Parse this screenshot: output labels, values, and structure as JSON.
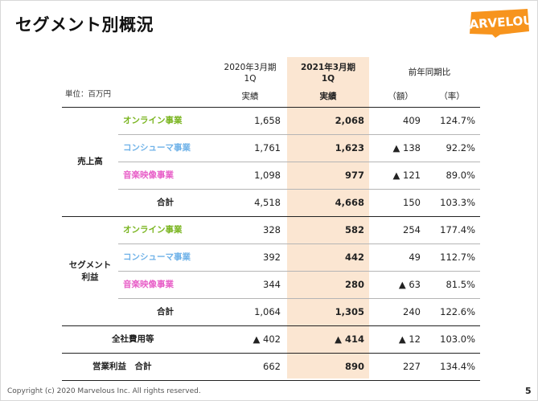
{
  "title": "セグメント別概況",
  "logo": {
    "text": "MARVELOUS",
    "color": "#f7941d"
  },
  "header": {
    "col_prev_line1": "2020年3月期",
    "col_prev_line2": "1Q",
    "col_curr_line1": "2021年3月期",
    "col_curr_line2": "1Q",
    "col_yoy": "前年同期比",
    "sub_prev": "実績",
    "sub_curr": "実績",
    "sub_amount": "（額）",
    "sub_rate": "（率）",
    "unit": "単位：百万円"
  },
  "groups": {
    "sales": "売上高",
    "profit_line1": "セグメント",
    "profit_line2": "利益"
  },
  "rows": [
    {
      "label": "オンライン事業",
      "prev": "1,658",
      "curr": "2,068",
      "amount": "409",
      "rate": "124.7%"
    },
    {
      "label": "コンシューマ事業",
      "prev": "1,761",
      "curr": "1,623",
      "amount": "▲ 138",
      "rate": "92.2%"
    },
    {
      "label": "音楽映像事業",
      "prev": "1,098",
      "curr": "977",
      "amount": "▲ 121",
      "rate": "89.0%"
    },
    {
      "label": "合計",
      "prev": "4,518",
      "curr": "4,668",
      "amount": "150",
      "rate": "103.3%"
    },
    {
      "label": "オンライン事業",
      "prev": "328",
      "curr": "582",
      "amount": "254",
      "rate": "177.4%"
    },
    {
      "label": "コンシューマ事業",
      "prev": "392",
      "curr": "442",
      "amount": "49",
      "rate": "112.7%"
    },
    {
      "label": "音楽映像事業",
      "prev": "344",
      "curr": "280",
      "amount": "▲ 63",
      "rate": "81.5%"
    },
    {
      "label": "合計",
      "prev": "1,064",
      "curr": "1,305",
      "amount": "240",
      "rate": "122.6%"
    },
    {
      "label": "全社費用等",
      "prev": "▲ 402",
      "curr": "▲ 414",
      "amount": "▲ 12",
      "rate": "103.0%"
    },
    {
      "label": "営業利益　合計",
      "prev": "662",
      "curr": "890",
      "amount": "227",
      "rate": "134.4%"
    }
  ],
  "segment_colors": {
    "online": "#7ab520",
    "consumer": "#6fb2e8",
    "music": "#e85fc8"
  },
  "highlight_color": "#fbe6d2",
  "footer": "Copyright (c) 2020 Marvelous Inc. All rights reserved.",
  "page_number": "5"
}
